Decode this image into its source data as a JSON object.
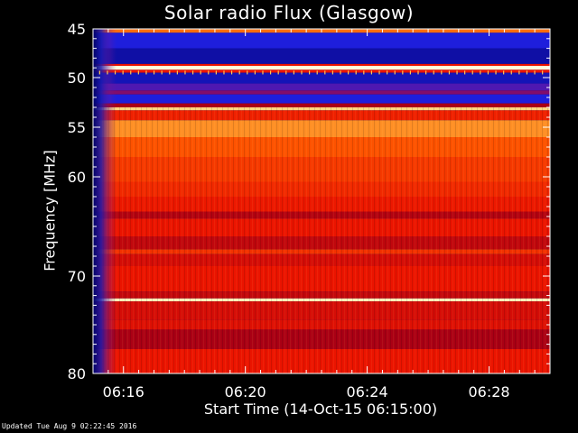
{
  "chart_data": {
    "type": "heatmap",
    "title": "Solar radio Flux (Glasgow)",
    "xlabel": "Start Time (14-Oct-15 06:15:00)",
    "ylabel": "Frequency [MHz]",
    "x_tick_labels": [
      "06:16",
      "06:20",
      "06:24",
      "06:28"
    ],
    "x_tick_minutes": [
      1,
      5,
      9,
      13
    ],
    "xlim_minutes": [
      0,
      15
    ],
    "y_tick_labels": [
      "45",
      "50",
      "55",
      "60",
      "70",
      "80"
    ],
    "y_tick_values": [
      45,
      50,
      55,
      60,
      70,
      80
    ],
    "ylim": [
      45,
      80
    ],
    "colormap": "blue-red-yellow (low to high intensity)",
    "bands": [
      {
        "freq_from": 45.0,
        "freq_to": 45.4,
        "level": 0.75
      },
      {
        "freq_from": 45.4,
        "freq_to": 47.0,
        "level": 0.12
      },
      {
        "freq_from": 47.0,
        "freq_to": 48.6,
        "level": 0.06
      },
      {
        "freq_from": 48.6,
        "freq_to": 48.8,
        "level": 0.55
      },
      {
        "freq_from": 48.8,
        "freq_to": 49.2,
        "level": 1.0
      },
      {
        "freq_from": 49.2,
        "freq_to": 49.5,
        "level": 0.55
      },
      {
        "freq_from": 49.5,
        "freq_to": 50.6,
        "level": 0.08
      },
      {
        "freq_from": 50.6,
        "freq_to": 51.3,
        "level": 0.2
      },
      {
        "freq_from": 51.3,
        "freq_to": 51.7,
        "level": 0.3
      },
      {
        "freq_from": 51.7,
        "freq_to": 52.6,
        "level": 0.12
      },
      {
        "freq_from": 52.6,
        "freq_to": 53.0,
        "level": 0.4
      },
      {
        "freq_from": 53.0,
        "freq_to": 53.3,
        "level": 0.92
      },
      {
        "freq_from": 53.3,
        "freq_to": 54.3,
        "level": 0.58
      },
      {
        "freq_from": 54.3,
        "freq_to": 56.0,
        "level": 0.8
      },
      {
        "freq_from": 56.0,
        "freq_to": 58.0,
        "level": 0.7
      },
      {
        "freq_from": 58.0,
        "freq_to": 60.5,
        "level": 0.64
      },
      {
        "freq_from": 60.5,
        "freq_to": 62.0,
        "level": 0.6
      },
      {
        "freq_from": 62.0,
        "freq_to": 63.5,
        "level": 0.56
      },
      {
        "freq_from": 63.5,
        "freq_to": 64.2,
        "level": 0.42
      },
      {
        "freq_from": 64.2,
        "freq_to": 66.0,
        "level": 0.55
      },
      {
        "freq_from": 66.0,
        "freq_to": 67.3,
        "level": 0.45
      },
      {
        "freq_from": 67.3,
        "freq_to": 67.8,
        "level": 0.62
      },
      {
        "freq_from": 67.8,
        "freq_to": 69.0,
        "level": 0.5
      },
      {
        "freq_from": 69.0,
        "freq_to": 71.6,
        "level": 0.55
      },
      {
        "freq_from": 71.6,
        "freq_to": 72.3,
        "level": 0.46
      },
      {
        "freq_from": 72.3,
        "freq_to": 72.6,
        "level": 0.97
      },
      {
        "freq_from": 72.6,
        "freq_to": 74.5,
        "level": 0.5
      },
      {
        "freq_from": 74.5,
        "freq_to": 75.5,
        "level": 0.52
      },
      {
        "freq_from": 75.5,
        "freq_to": 77.5,
        "level": 0.4
      },
      {
        "freq_from": 77.5,
        "freq_to": 80.0,
        "level": 0.55
      }
    ]
  },
  "footer": {
    "updated": "Updated Tue Aug  9 02:22:45 2016"
  }
}
